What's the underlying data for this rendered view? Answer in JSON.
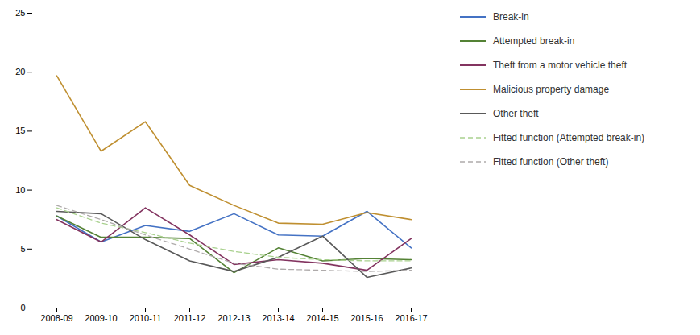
{
  "chart_data": {
    "type": "line",
    "categories": [
      "2008-09",
      "2009-10",
      "2010-11",
      "2011-12",
      "2012-13",
      "2013-14",
      "2014-15",
      "2015-16",
      "2016-17"
    ],
    "series": [
      {
        "name": "Break-in",
        "color": "#4472C4",
        "values": [
          7.8,
          5.6,
          7.0,
          6.5,
          8.0,
          6.2,
          6.1,
          8.2,
          5.1
        ]
      },
      {
        "name": "Attempted break-in",
        "color": "#548235",
        "values": [
          7.8,
          6.0,
          6.0,
          5.9,
          3.0,
          5.1,
          4.0,
          4.2,
          4.1
        ]
      },
      {
        "name": "Theft from a motor vehicle theft",
        "color": "#833460",
        "values": [
          7.5,
          5.6,
          8.5,
          6.2,
          3.7,
          4.1,
          3.8,
          3.2,
          5.9
        ]
      },
      {
        "name": "Malicious property damage",
        "color": "#BF8F30",
        "values": [
          19.7,
          13.3,
          15.8,
          10.4,
          8.7,
          7.2,
          7.1,
          8.1,
          7.5
        ]
      },
      {
        "name": "Other theft",
        "color": "#595959",
        "values": [
          8.2,
          8.0,
          5.8,
          4.0,
          3.1,
          4.3,
          6.1,
          2.6,
          3.4
        ]
      },
      {
        "name": "Fitted function (Attempted break-in)",
        "color": "#A9D18E",
        "line_style": "dashed",
        "values": [
          8.5,
          7.2,
          6.4,
          5.5,
          4.8,
          4.3,
          4.1,
          4.0,
          4.0
        ]
      },
      {
        "name": "Fitted function (Other theft)",
        "color": "#AEAAAA",
        "line_style": "dashed",
        "values": [
          8.7,
          7.5,
          6.2,
          5.0,
          3.8,
          3.3,
          3.2,
          3.1,
          3.2
        ]
      }
    ],
    "ylim": [
      0,
      25
    ],
    "yticks": [
      0,
      5,
      10,
      15,
      20,
      25
    ],
    "grid": false,
    "legend": "right"
  }
}
